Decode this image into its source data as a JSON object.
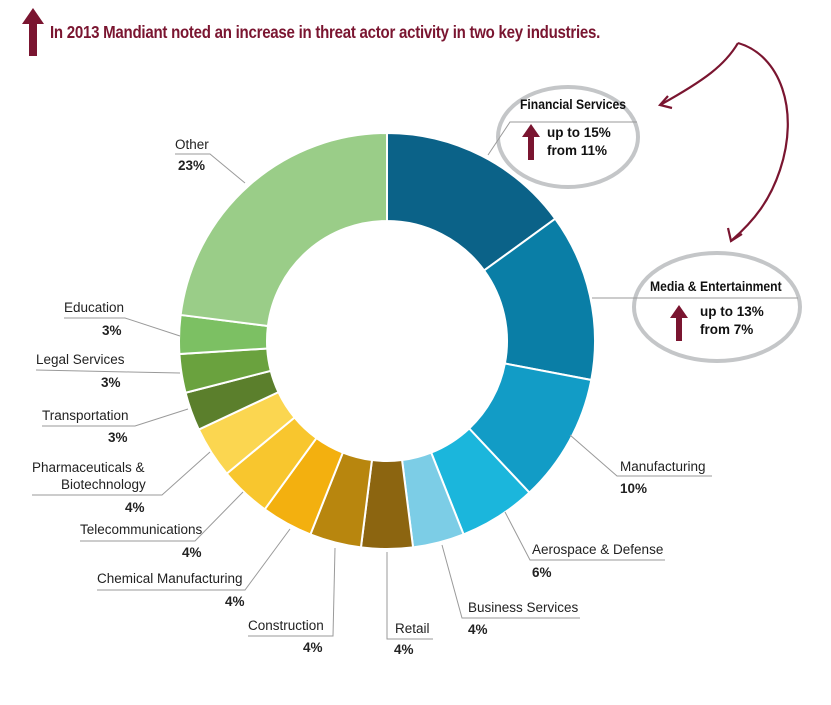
{
  "headline": "In 2013 Mandiant noted an increase in threat actor activity in two key industries.",
  "colors": {
    "accent": "#7a1530",
    "callout_ring": "#c4c6c8",
    "leader": "#9a9a9a"
  },
  "callouts": [
    {
      "name": "Financial Services",
      "line1": "up to 15%",
      "line2": "from 11%",
      "icon": "up-arrow-icon"
    },
    {
      "name": "Media & Entertainment",
      "line1": "up to 13%",
      "line2": "from 7%",
      "icon": "up-arrow-icon"
    }
  ],
  "chart_data": {
    "type": "pie",
    "variant": "donut",
    "title": "In 2013 Mandiant noted an increase in threat actor activity in two key industries.",
    "unit": "%",
    "start": "top",
    "direction": "clockwise",
    "slices": [
      {
        "label": "Financial Services",
        "value": 15,
        "value_label": "",
        "color": "#0b6288"
      },
      {
        "label": "Media & Entertainment",
        "value": 13,
        "value_label": "",
        "color": "#0a7ea6"
      },
      {
        "label": "Manufacturing",
        "value": 10,
        "value_label": "10%",
        "color": "#129cc6"
      },
      {
        "label": "Aerospace & Defense",
        "value": 6,
        "value_label": "6%",
        "color": "#1bb6dc"
      },
      {
        "label": "Business Services",
        "value": 4,
        "value_label": "4%",
        "color": "#7ccde6"
      },
      {
        "label": "Retail",
        "value": 4,
        "value_label": "4%",
        "color": "#8c6510"
      },
      {
        "label": "Construction",
        "value": 4,
        "value_label": "4%",
        "color": "#b8860e"
      },
      {
        "label": "Chemical Manufacturing",
        "value": 4,
        "value_label": "4%",
        "color": "#f3b00f"
      },
      {
        "label": "Telecommunications",
        "value": 4,
        "value_label": "4%",
        "color": "#f8c62e"
      },
      {
        "label": "Pharmaceuticals & Biotechnology",
        "value": 4,
        "value_label": "4%",
        "color": "#fbd650"
      },
      {
        "label": "Transportation",
        "value": 3,
        "value_label": "3%",
        "color": "#5b7f2c"
      },
      {
        "label": "Legal Services",
        "value": 3,
        "value_label": "3%",
        "color": "#6aa23e"
      },
      {
        "label": "Education",
        "value": 3,
        "value_label": "3%",
        "color": "#7cc063"
      },
      {
        "label": "Other",
        "value": 23,
        "value_label": "23%",
        "color": "#9acd88"
      }
    ],
    "label_lines": {
      "Pharmaceuticals & Biotechnology": [
        "Pharmaceuticals &",
        "Biotechnology"
      ]
    },
    "legend": "none"
  }
}
